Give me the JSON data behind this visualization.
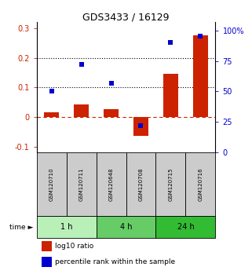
{
  "title": "GDS3433 / 16129",
  "samples": [
    "GSM120710",
    "GSM120711",
    "GSM120648",
    "GSM120708",
    "GSM120715",
    "GSM120716"
  ],
  "log10_ratio": [
    0.015,
    0.042,
    0.025,
    -0.065,
    0.145,
    0.275
  ],
  "percentile_rank": [
    50,
    72,
    57,
    22,
    90,
    95
  ],
  "time_groups": [
    {
      "label": "1 h",
      "start": 0,
      "end": 2,
      "color": "#b8f0b8"
    },
    {
      "label": "4 h",
      "start": 2,
      "end": 4,
      "color": "#66cc66"
    },
    {
      "label": "24 h",
      "start": 4,
      "end": 6,
      "color": "#33bb33"
    }
  ],
  "red_color": "#cc2200",
  "blue_color": "#0000cc",
  "bar_width": 0.5,
  "ylim_left": [
    -0.12,
    0.32
  ],
  "ylim_right": [
    0,
    106.67
  ],
  "yticks_left": [
    -0.1,
    0.0,
    0.1,
    0.2,
    0.3
  ],
  "yticks_right": [
    0,
    25,
    50,
    75,
    100
  ],
  "ytick_labels_left": [
    "-0.1",
    "0",
    "0.1",
    "0.2",
    "0.3"
  ],
  "ytick_labels_right": [
    "0",
    "25",
    "50",
    "75",
    "100%"
  ],
  "hlines": [
    0.1,
    0.2
  ],
  "legend_red": "log10 ratio",
  "legend_blue": "percentile rank within the sample",
  "sample_box_color": "#cccccc",
  "time_label": "time"
}
